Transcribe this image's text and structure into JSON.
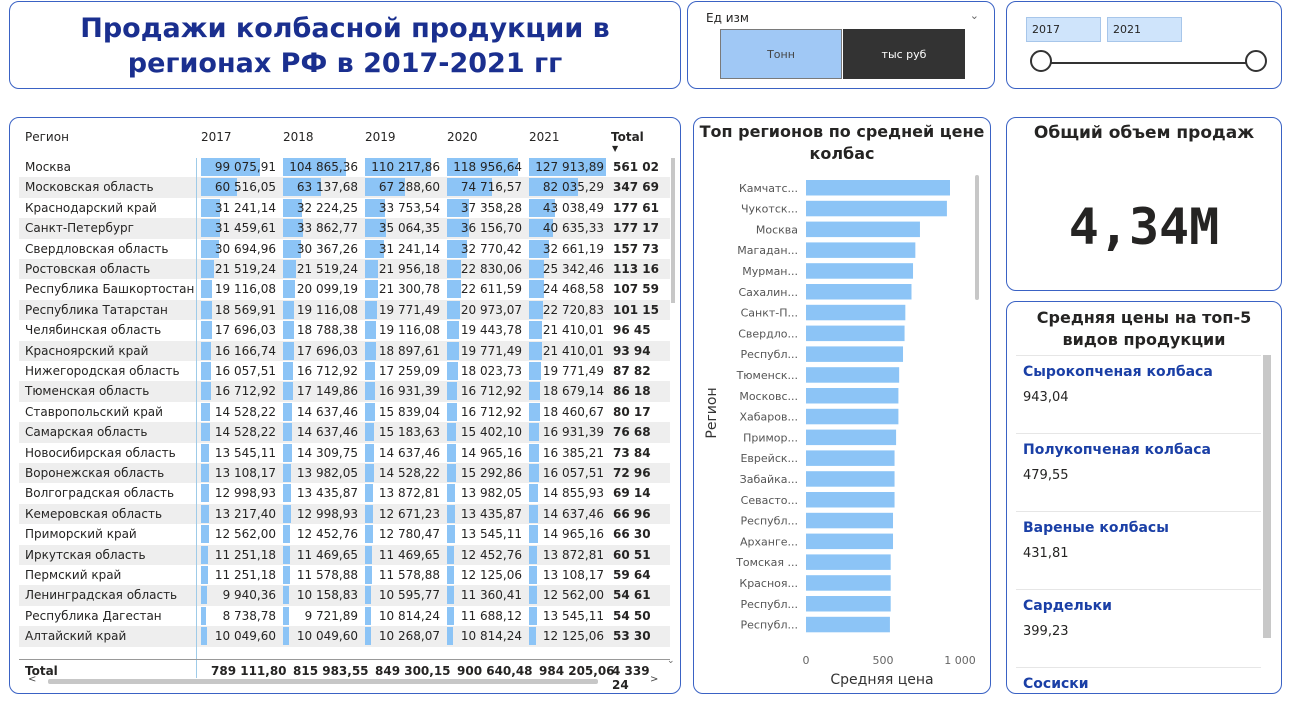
{
  "title": "Продажи колбасной продукции в регионах РФ в 2017-2021 гг",
  "unit_filter": {
    "label": "Ед изм",
    "options": [
      "Тонн",
      "тыс руб"
    ],
    "selected": "тыс руб"
  },
  "year_slider": {
    "from": "2017",
    "to": "2021"
  },
  "table": {
    "headers": {
      "region": "Регион",
      "y2017": "2017",
      "y2018": "2018",
      "y2019": "2019",
      "y2020": "2020",
      "y2021": "2021",
      "total": "Total"
    },
    "rows": [
      {
        "region": "Москва",
        "values": [
          "99 075,91",
          "104 865,36",
          "110 217,86",
          "118 956,64",
          "127 913,89"
        ],
        "nums": [
          99075.91,
          104865.36,
          110217.86,
          118956.64,
          127913.89
        ],
        "total": "561 02"
      },
      {
        "region": "Московская область",
        "values": [
          "60 516,05",
          "63 137,68",
          "67 288,60",
          "74 716,57",
          "82 035,29"
        ],
        "nums": [
          60516.05,
          63137.68,
          67288.6,
          74716.57,
          82035.29
        ],
        "total": "347 69"
      },
      {
        "region": "Краснодарский край",
        "values": [
          "31 241,14",
          "32 224,25",
          "33 753,54",
          "37 358,28",
          "43 038,49"
        ],
        "nums": [
          31241.14,
          32224.25,
          33753.54,
          37358.28,
          43038.49
        ],
        "total": "177 61"
      },
      {
        "region": "Санкт-Петербург",
        "values": [
          "31 459,61",
          "33 862,77",
          "35 064,35",
          "36 156,70",
          "40 635,33"
        ],
        "nums": [
          31459.61,
          33862.77,
          35064.35,
          36156.7,
          40635.33
        ],
        "total": "177 17"
      },
      {
        "region": "Свердловская область",
        "values": [
          "30 694,96",
          "30 367,26",
          "31 241,14",
          "32 770,42",
          "32 661,19"
        ],
        "nums": [
          30694.96,
          30367.26,
          31241.14,
          32770.42,
          32661.19
        ],
        "total": "157 73"
      },
      {
        "region": "Ростовская область",
        "values": [
          "21 519,24",
          "21 519,24",
          "21 956,18",
          "22 830,06",
          "25 342,46"
        ],
        "nums": [
          21519.24,
          21519.24,
          21956.18,
          22830.06,
          25342.46
        ],
        "total": "113 16"
      },
      {
        "region": "Республика Башкортостан",
        "values": [
          "19 116,08",
          "20 099,19",
          "21 300,78",
          "22 611,59",
          "24 468,58"
        ],
        "nums": [
          19116.08,
          20099.19,
          21300.78,
          22611.59,
          24468.58
        ],
        "total": "107 59"
      },
      {
        "region": "Республика Татарстан",
        "values": [
          "18 569,91",
          "19 116,08",
          "19 771,49",
          "20 973,07",
          "22 720,83"
        ],
        "nums": [
          18569.91,
          19116.08,
          19771.49,
          20973.07,
          22720.83
        ],
        "total": "101 15"
      },
      {
        "region": "Челябинская область",
        "values": [
          "17 696,03",
          "18 788,38",
          "19 116,08",
          "19 443,78",
          "21 410,01"
        ],
        "nums": [
          17696.03,
          18788.38,
          19116.08,
          19443.78,
          21410.01
        ],
        "total": "96 45"
      },
      {
        "region": "Красноярский край",
        "values": [
          "16 166,74",
          "17 696,03",
          "18 897,61",
          "19 771,49",
          "21 410,01"
        ],
        "nums": [
          16166.74,
          17696.03,
          18897.61,
          19771.49,
          21410.01
        ],
        "total": "93 94"
      },
      {
        "region": "Нижегородская область",
        "values": [
          "16 057,51",
          "16 712,92",
          "17 259,09",
          "18 023,73",
          "19 771,49"
        ],
        "nums": [
          16057.51,
          16712.92,
          17259.09,
          18023.73,
          19771.49
        ],
        "total": "87 82"
      },
      {
        "region": "Тюменская область",
        "values": [
          "16 712,92",
          "17 149,86",
          "16 931,39",
          "16 712,92",
          "18 679,14"
        ],
        "nums": [
          16712.92,
          17149.86,
          16931.39,
          16712.92,
          18679.14
        ],
        "total": "86 18"
      },
      {
        "region": "Ставропольский край",
        "values": [
          "14 528,22",
          "14 637,46",
          "15 839,04",
          "16 712,92",
          "18 460,67"
        ],
        "nums": [
          14528.22,
          14637.46,
          15839.04,
          16712.92,
          18460.67
        ],
        "total": "80 17"
      },
      {
        "region": "Самарская область",
        "values": [
          "14 528,22",
          "14 637,46",
          "15 183,63",
          "15 402,10",
          "16 931,39"
        ],
        "nums": [
          14528.22,
          14637.46,
          15183.63,
          15402.1,
          16931.39
        ],
        "total": "76 68"
      },
      {
        "region": "Новосибирская область",
        "values": [
          "13 545,11",
          "14 309,75",
          "14 637,46",
          "14 965,16",
          "16 385,21"
        ],
        "nums": [
          13545.11,
          14309.75,
          14637.46,
          14965.16,
          16385.21
        ],
        "total": "73 84"
      },
      {
        "region": "Воронежская область",
        "values": [
          "13 108,17",
          "13 982,05",
          "14 528,22",
          "15 292,86",
          "16 057,51"
        ],
        "nums": [
          13108.17,
          13982.05,
          14528.22,
          15292.86,
          16057.51
        ],
        "total": "72 96"
      },
      {
        "region": "Волгоградская область",
        "values": [
          "12 998,93",
          "13 435,87",
          "13 872,81",
          "13 982,05",
          "14 855,93"
        ],
        "nums": [
          12998.93,
          13435.87,
          13872.81,
          13982.05,
          14855.93
        ],
        "total": "69 14"
      },
      {
        "region": "Кемеровская область",
        "values": [
          "13 217,40",
          "12 998,93",
          "12 671,23",
          "13 435,87",
          "14 637,46"
        ],
        "nums": [
          13217.4,
          12998.93,
          12671.23,
          13435.87,
          14637.46
        ],
        "total": "66 96"
      },
      {
        "region": "Приморский край",
        "values": [
          "12 562,00",
          "12 452,76",
          "12 780,47",
          "13 545,11",
          "14 965,16"
        ],
        "nums": [
          12562.0,
          12452.76,
          12780.47,
          13545.11,
          14965.16
        ],
        "total": "66 30"
      },
      {
        "region": "Иркутская область",
        "values": [
          "11 251,18",
          "11 469,65",
          "11 469,65",
          "12 452,76",
          "13 872,81"
        ],
        "nums": [
          11251.18,
          11469.65,
          11469.65,
          12452.76,
          13872.81
        ],
        "total": "60 51"
      },
      {
        "region": "Пермский край",
        "values": [
          "11 251,18",
          "11 578,88",
          "11 578,88",
          "12 125,06",
          "13 108,17"
        ],
        "nums": [
          11251.18,
          11578.88,
          11578.88,
          12125.06,
          13108.17
        ],
        "total": "59 64"
      },
      {
        "region": "Ленинградская область",
        "values": [
          "9 940,36",
          "10 158,83",
          "10 595,77",
          "11 360,41",
          "12 562,00"
        ],
        "nums": [
          9940.36,
          10158.83,
          10595.77,
          11360.41,
          12562.0
        ],
        "total": "54 61"
      },
      {
        "region": "Республика Дагестан",
        "values": [
          "8 738,78",
          "9 721,89",
          "10 814,24",
          "11 688,12",
          "13 545,11"
        ],
        "nums": [
          8738.78,
          9721.89,
          10814.24,
          11688.12,
          13545.11
        ],
        "total": "54 50"
      },
      {
        "region": "Алтайский край",
        "values": [
          "10 049,60",
          "10 049,60",
          "10 268,07",
          "10 814,24",
          "12 125,06"
        ],
        "nums": [
          10049.6,
          10049.6,
          10268.07,
          10814.24,
          12125.06
        ],
        "total": "53 30"
      }
    ],
    "totals": {
      "label": "Total",
      "values": [
        "789 111,80",
        "815 983,55",
        "849 300,15",
        "900 640,48",
        "984 205,06"
      ],
      "grand": "4 339 24"
    }
  },
  "bar_chart_title": "Топ регионов по средней цене колбас",
  "chart_data": {
    "type": "bar",
    "orientation": "horizontal",
    "title": "Топ регионов по средней цене колбас",
    "xlabel": "Средняя цена",
    "ylabel": "Регион",
    "xlim": [
      0,
      1000
    ],
    "xticks": [
      "0",
      "500",
      "1 000"
    ],
    "categories": [
      "Камчатс...",
      "Чукотск...",
      "Москва",
      "Магадан...",
      "Мурман...",
      "Сахалин...",
      "Санкт-П...",
      "Свердло...",
      "Республ...",
      "Тюменск...",
      "Московс...",
      "Хабаров...",
      "Примор...",
      "Еврейск...",
      "Забайка...",
      "Севасто...",
      "Республ...",
      "Арханге...",
      "Томская ...",
      "Красноя...",
      "Республ...",
      "Республ..."
    ],
    "values": [
      935,
      915,
      740,
      710,
      695,
      685,
      645,
      640,
      630,
      605,
      600,
      600,
      585,
      575,
      575,
      575,
      565,
      565,
      550,
      550,
      550,
      545
    ],
    "color": "#8cc4f6"
  },
  "kpi": {
    "title": "Общий объем продаж",
    "value": "4,34M"
  },
  "price_list": {
    "title": "Средняя цены на топ-5 видов продукции",
    "items": [
      {
        "name": "Сырокопченая колбаса",
        "value": "943,04"
      },
      {
        "name": "Полукопченая колбаса",
        "value": "479,55"
      },
      {
        "name": "Вареные колбасы",
        "value": "431,81"
      },
      {
        "name": "Сардельки",
        "value": "399,23"
      },
      {
        "name": "Сосиски",
        "value": ""
      }
    ]
  },
  "colors": {
    "accent": "#1a2f8f",
    "border": "#3a62c4",
    "bar": "#8cc4f6",
    "button_active": "#333333",
    "button_inactive": "#a0c8f5"
  }
}
